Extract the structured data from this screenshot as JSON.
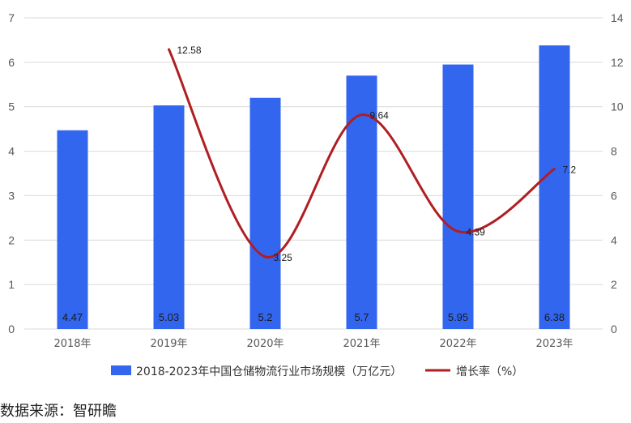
{
  "chart_data": {
    "type": "bar",
    "categories": [
      "2018年",
      "2019年",
      "2020年",
      "2021年",
      "2022年",
      "2023年"
    ],
    "series": [
      {
        "name": "2018-2023年中国仓储物流行业市场规模（万亿元）",
        "type": "bar",
        "axis": "left",
        "values": [
          4.47,
          5.03,
          5.2,
          5.7,
          5.95,
          6.38
        ],
        "labels": [
          "4.47",
          "5.03",
          "5.2",
          "5.7",
          "5.95",
          "6.38"
        ]
      },
      {
        "name": "增长率（%）",
        "type": "line",
        "axis": "right",
        "values": [
          null,
          12.58,
          3.25,
          9.64,
          4.39,
          7.2
        ],
        "labels": [
          "",
          "12.58",
          "3.25",
          "9.64",
          "4.39",
          "7.2"
        ]
      }
    ],
    "y_left": {
      "range": [
        0,
        7
      ],
      "ticks": [
        "0",
        "1",
        "2",
        "3",
        "4",
        "5",
        "6",
        "7"
      ]
    },
    "y_right": {
      "range": [
        0,
        14
      ],
      "ticks": [
        "0",
        "2",
        "4",
        "6",
        "8",
        "10",
        "12",
        "14"
      ]
    },
    "grid": true,
    "legend_position": "bottom",
    "colors": {
      "bar": "#3366EE",
      "line": "#B01E23",
      "grid": "#D9D9D9"
    }
  },
  "source_text": "数据来源：智研瞻"
}
